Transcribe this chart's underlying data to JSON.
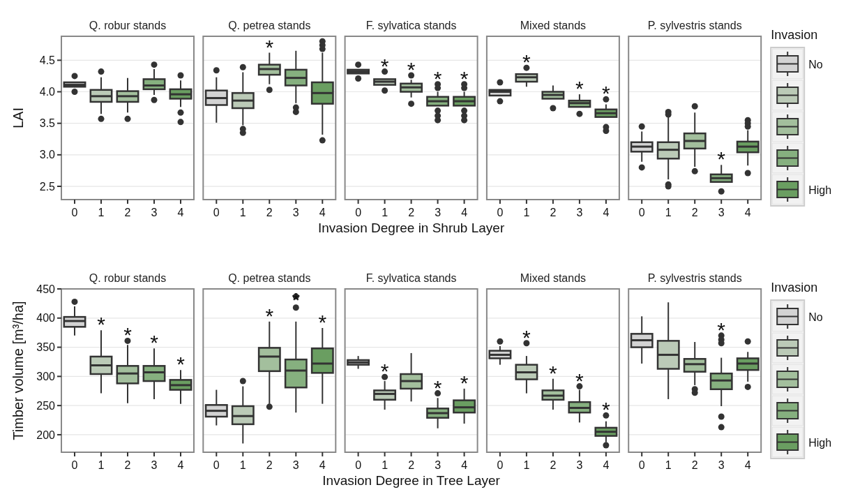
{
  "chart_data": [
    {
      "type": "box",
      "title": "Q. robur stands",
      "ylabel": "LAI",
      "categories": [
        "0",
        "1",
        "2",
        "3",
        "4"
      ],
      "ylim": [
        2.29,
        4.88
      ],
      "yticks": [
        2.5,
        {
          "value": 3,
          "label": "3.0"
        },
        3.5,
        {
          "value": 4,
          "label": "4.0"
        },
        4.5
      ],
      "grid": "y",
      "series": [
        {
          "color": "#d3d3d3",
          "boxes": [
            {
              "low": 4.07,
              "q1": 4.08,
              "median": 4.11,
              "q3": 4.15,
              "high": 4.16,
              "outliers": [
                4.25,
                4.0
              ]
            },
            null,
            null,
            null,
            null
          ]
        },
        {
          "color": "#bbcab7",
          "boxes": [
            null,
            {
              "low": 3.65,
              "q1": 3.84,
              "median": 3.93,
              "q3": 4.03,
              "high": 4.23,
              "outliers": [
                4.32,
                3.57
              ]
            },
            null,
            null,
            null
          ]
        },
        {
          "color": "#a3bf9d",
          "boxes": [
            null,
            null,
            {
              "low": 3.67,
              "q1": 3.84,
              "median": 3.93,
              "q3": 4.01,
              "high": 4.22,
              "outliers": [
                3.57
              ]
            },
            null,
            null
          ]
        },
        {
          "color": "#86b07f",
          "boxes": [
            null,
            null,
            null,
            {
              "low": 3.95,
              "q1": 4.04,
              "median": 4.1,
              "q3": 4.2,
              "high": 4.36,
              "outliers": [
                4.43,
                3.87
              ]
            },
            null
          ]
        },
        {
          "color": "#6a9e61",
          "boxes": [
            null,
            null,
            null,
            null,
            {
              "low": 3.76,
              "q1": 3.89,
              "median": 3.96,
              "q3": 4.04,
              "high": 4.18,
              "outliers": [
                4.26,
                3.67,
                3.52
              ]
            }
          ]
        }
      ]
    },
    {
      "type": "box",
      "title": "Q. petrea stands",
      "categories": [
        "0",
        "1",
        "2",
        "3",
        "4"
      ],
      "ylim": [
        2.29,
        4.88
      ],
      "yticks": [
        2.5,
        3,
        3.5,
        4,
        4.5
      ],
      "tick_labels": "x",
      "grid": "y",
      "annotations": [
        null,
        null,
        "*",
        null,
        null
      ],
      "series": [
        {
          "color": "#d3d3d3",
          "boxes": [
            {
              "low": 3.51,
              "q1": 3.79,
              "median": 3.9,
              "q3": 4.02,
              "high": 4.23,
              "outliers": [
                4.34
              ]
            },
            null,
            null,
            null,
            null
          ]
        },
        {
          "color": "#bbcab7",
          "boxes": [
            null,
            {
              "low": 3.47,
              "q1": 3.74,
              "median": 3.86,
              "q3": 3.98,
              "high": 4.31,
              "outliers": [
                4.39,
                3.41,
                3.35
              ]
            },
            null,
            null,
            null
          ]
        },
        {
          "color": "#a3bf9d",
          "boxes": [
            null,
            null,
            {
              "low": 4.12,
              "q1": 4.27,
              "median": 4.36,
              "q3": 4.43,
              "high": 4.62,
              "outliers": [
                4.03
              ]
            },
            null,
            null
          ]
        },
        {
          "color": "#86b07f",
          "boxes": [
            null,
            null,
            null,
            {
              "low": 3.82,
              "q1": 4.1,
              "median": 4.22,
              "q3": 4.35,
              "high": 4.65,
              "outliers": [
                3.75,
                3.68
              ]
            },
            null
          ]
        },
        {
          "color": "#6a9e61",
          "boxes": [
            null,
            null,
            null,
            null,
            {
              "low": 3.32,
              "q1": 3.81,
              "median": 3.98,
              "q3": 4.15,
              "high": 4.62,
              "outliers": [
                4.8,
                4.74,
                4.68,
                3.23
              ]
            }
          ]
        }
      ]
    },
    {
      "type": "box",
      "title": "F. sylvatica stands",
      "xlabel": "Invasion Degree in Shrub Layer",
      "categories": [
        "0",
        "1",
        "2",
        "3",
        "4"
      ],
      "ylim": [
        2.29,
        4.88
      ],
      "yticks": [
        2.5,
        3,
        3.5,
        4,
        4.5
      ],
      "tick_labels": "x",
      "grid": "y",
      "annotations": [
        null,
        "*",
        "*",
        "*",
        "*"
      ],
      "series": [
        {
          "color": "#d3d3d3",
          "boxes": [
            {
              "low": 4.29,
              "q1": 4.29,
              "median": 4.32,
              "q3": 4.35,
              "high": 4.35,
              "outliers": [
                4.43,
                4.21
              ]
            },
            null,
            null,
            null,
            null
          ]
        },
        {
          "color": "#bbcab7",
          "boxes": [
            null,
            {
              "low": 4.11,
              "q1": 4.11,
              "median": 4.16,
              "q3": 4.2,
              "high": 4.2,
              "outliers": [
                4.32,
                4.02
              ]
            },
            null,
            null,
            null
          ]
        },
        {
          "color": "#a3bf9d",
          "boxes": [
            null,
            null,
            {
              "low": 3.91,
              "q1": 4.0,
              "median": 4.07,
              "q3": 4.13,
              "high": 4.19,
              "outliers": [
                4.26,
                3.81
              ]
            },
            null,
            null
          ]
        },
        {
          "color": "#86b07f",
          "boxes": [
            null,
            null,
            null,
            {
              "low": 3.78,
              "q1": 3.78,
              "median": 3.85,
              "q3": 3.92,
              "high": 4.0,
              "outliers": [
                4.12,
                4.06,
                3.7,
                3.62,
                3.55
              ]
            },
            null
          ]
        },
        {
          "color": "#6a9e61",
          "boxes": [
            null,
            null,
            null,
            null,
            {
              "low": 3.78,
              "q1": 3.78,
              "median": 3.85,
              "q3": 3.92,
              "high": 4.0,
              "outliers": [
                4.12,
                4.06,
                3.7,
                3.62,
                3.55
              ]
            }
          ]
        }
      ]
    },
    {
      "type": "box",
      "title": "Mixed stands",
      "categories": [
        "0",
        "1",
        "2",
        "3",
        "4"
      ],
      "ylim": [
        2.29,
        4.88
      ],
      "yticks": [
        2.5,
        3,
        3.5,
        4,
        4.5
      ],
      "tick_labels": "x",
      "grid": "y",
      "annotations": [
        null,
        "*",
        null,
        "*",
        "*"
      ],
      "series": [
        {
          "color": "#d3d3d3",
          "boxes": [
            {
              "low": 3.94,
              "q1": 3.94,
              "median": 4.0,
              "q3": 4.03,
              "high": 4.03,
              "outliers": [
                4.15,
                3.85
              ]
            },
            null,
            null,
            null,
            null
          ]
        },
        {
          "color": "#bbcab7",
          "boxes": [
            null,
            {
              "low": 4.08,
              "q1": 4.16,
              "median": 4.23,
              "q3": 4.28,
              "high": 4.28,
              "outliers": [
                4.38
              ]
            },
            null,
            null,
            null
          ]
        },
        {
          "color": "#a3bf9d",
          "boxes": [
            null,
            null,
            {
              "low": 3.89,
              "q1": 3.89,
              "median": 3.95,
              "q3": 4.0,
              "high": 4.1,
              "outliers": [
                3.74
              ]
            },
            null,
            null
          ]
        },
        {
          "color": "#86b07f",
          "boxes": [
            null,
            null,
            null,
            {
              "low": 3.76,
              "q1": 3.76,
              "median": 3.82,
              "q3": 3.86,
              "high": 3.96,
              "outliers": [
                3.65
              ]
            },
            null
          ]
        },
        {
          "color": "#6a9e61",
          "boxes": [
            null,
            null,
            null,
            null,
            {
              "low": 3.6,
              "q1": 3.6,
              "median": 3.66,
              "q3": 3.72,
              "high": 3.8,
              "outliers": [
                3.88,
                3.44,
                3.38
              ]
            }
          ]
        }
      ]
    },
    {
      "type": "box",
      "title": "P. sylvestris stands",
      "categories": [
        "0",
        "1",
        "2",
        "3",
        "4"
      ],
      "ylim": [
        2.29,
        4.88
      ],
      "yticks": [
        2.5,
        3,
        3.5,
        4,
        4.5
      ],
      "tick_labels": "x",
      "grid": "y",
      "legend": "right",
      "legend_title": "Invasion",
      "annotations": [
        null,
        null,
        null,
        "*",
        null
      ],
      "series": [
        {
          "name": "No",
          "color": "#d3d3d3",
          "boxes": [
            {
              "low": 2.89,
              "q1": 3.05,
              "median": 3.13,
              "q3": 3.2,
              "high": 3.37,
              "outliers": [
                3.45,
                2.8
              ]
            },
            null,
            null,
            null,
            null
          ]
        },
        {
          "color": "#bbcab7",
          "boxes": [
            null,
            {
              "low": 2.61,
              "q1": 2.94,
              "median": 3.08,
              "q3": 3.2,
              "high": 3.6,
              "outliers": [
                3.68,
                3.64,
                2.53,
                2.5
              ]
            },
            null,
            null,
            null
          ]
        },
        {
          "color": "#a3bf9d",
          "boxes": [
            null,
            null,
            {
              "low": 2.81,
              "q1": 3.1,
              "median": 3.22,
              "q3": 3.34,
              "high": 3.67,
              "outliers": [
                3.77,
                2.74
              ]
            },
            null,
            null
          ]
        },
        {
          "color": "#86b07f",
          "boxes": [
            null,
            null,
            null,
            {
              "low": 2.57,
              "q1": 2.57,
              "median": 2.63,
              "q3": 2.69,
              "high": 2.84,
              "outliers": [
                2.42
              ]
            },
            null
          ]
        },
        {
          "name": "High",
          "color": "#6a9e61",
          "boxes": [
            null,
            null,
            null,
            null,
            {
              "low": 2.83,
              "q1": 3.04,
              "median": 3.13,
              "q3": 3.21,
              "high": 3.39,
              "outliers": [
                3.55,
                3.5,
                3.45,
                2.71
              ]
            }
          ]
        }
      ]
    },
    {
      "type": "box",
      "title": "Q. robur stands",
      "ylabel": "Timber volume [m³/ha]",
      "categories": [
        "0",
        "1",
        "2",
        "3",
        "4"
      ],
      "ylim": [
        170,
        450
      ],
      "yticks": [
        200,
        250,
        300,
        350,
        400,
        450
      ],
      "grid": "y",
      "annotations": [
        null,
        "*",
        "*",
        "*",
        "*"
      ],
      "series": [
        {
          "color": "#d3d3d3",
          "boxes": [
            {
              "low": 370,
              "q1": 385,
              "median": 395,
              "q3": 402,
              "high": 420,
              "outliers": [
                428
              ]
            },
            null,
            null,
            null,
            null
          ]
        },
        {
          "color": "#bbcab7",
          "boxes": [
            null,
            {
              "low": 271,
              "q1": 304,
              "median": 319,
              "q3": 334,
              "high": 379
            },
            null,
            null,
            null
          ]
        },
        {
          "color": "#a3bf9d",
          "boxes": [
            null,
            null,
            {
              "low": 254,
              "q1": 288,
              "median": 305,
              "q3": 318,
              "high": 354,
              "outliers": [
                361
              ]
            },
            null,
            null
          ]
        },
        {
          "color": "#86b07f",
          "boxes": [
            null,
            null,
            null,
            {
              "low": 261,
              "q1": 292,
              "median": 307,
              "q3": 318,
              "high": 348
            },
            null
          ]
        },
        {
          "color": "#6a9e61",
          "boxes": [
            null,
            null,
            null,
            null,
            {
              "low": 253,
              "q1": 277,
              "median": 285,
              "q3": 294,
              "high": 311
            }
          ]
        }
      ]
    },
    {
      "type": "box",
      "title": "Q. petrea stands",
      "categories": [
        "0",
        "1",
        "2",
        "3",
        "4"
      ],
      "ylim": [
        170,
        450
      ],
      "yticks": [
        200,
        250,
        300,
        350,
        400,
        450
      ],
      "tick_labels": "x",
      "grid": "y",
      "annotations": [
        null,
        null,
        "*",
        "*",
        "*"
      ],
      "series": [
        {
          "color": "#d3d3d3",
          "boxes": [
            {
              "low": 216,
              "q1": 231,
              "median": 241,
              "q3": 251,
              "high": 277
            },
            null,
            null,
            null,
            null
          ]
        },
        {
          "color": "#bbcab7",
          "boxes": [
            null,
            {
              "low": 185,
              "q1": 218,
              "median": 232,
              "q3": 249,
              "high": 283,
              "outliers": [
                292
              ]
            },
            null,
            null,
            null
          ]
        },
        {
          "color": "#a3bf9d",
          "boxes": [
            null,
            null,
            {
              "low": 253,
              "q1": 309,
              "median": 334,
              "q3": 349,
              "high": 394,
              "outliers": [
                248
              ]
            },
            null,
            null
          ]
        },
        {
          "color": "#86b07f",
          "boxes": [
            null,
            null,
            null,
            {
              "low": 238,
              "q1": 281,
              "median": 310,
              "q3": 329,
              "high": 394,
              "outliers": [
                437,
                418
              ]
            },
            null
          ]
        },
        {
          "color": "#6a9e61",
          "boxes": [
            null,
            null,
            null,
            null,
            {
              "low": 253,
              "q1": 306,
              "median": 322,
              "q3": 348,
              "high": 383
            }
          ]
        }
      ]
    },
    {
      "type": "box",
      "title": "F. sylvatica stands",
      "xlabel": "Invasion Degree in Tree Layer",
      "categories": [
        "0",
        "1",
        "2",
        "3",
        "4"
      ],
      "ylim": [
        170,
        450
      ],
      "yticks": [
        200,
        250,
        300,
        350,
        400,
        450
      ],
      "tick_labels": "x",
      "grid": "y",
      "annotations": [
        null,
        "*",
        null,
        "*",
        "*"
      ],
      "series": [
        {
          "color": "#d3d3d3",
          "boxes": [
            {
              "low": 313,
              "q1": 320,
              "median": 324,
              "q3": 328,
              "high": 335
            },
            null,
            null,
            null,
            null
          ]
        },
        {
          "color": "#bbcab7",
          "boxes": [
            null,
            {
              "low": 243,
              "q1": 260,
              "median": 270,
              "q3": 276,
              "high": 292,
              "outliers": [
                299
              ]
            },
            null,
            null,
            null
          ]
        },
        {
          "color": "#a3bf9d",
          "boxes": [
            null,
            null,
            {
              "low": 257,
              "q1": 279,
              "median": 292,
              "q3": 304,
              "high": 340
            },
            null,
            null
          ]
        },
        {
          "color": "#86b07f",
          "boxes": [
            null,
            null,
            null,
            {
              "low": 211,
              "q1": 229,
              "median": 237,
              "q3": 245,
              "high": 263,
              "outliers": [
                271
              ]
            },
            null
          ]
        },
        {
          "color": "#6a9e61",
          "boxes": [
            null,
            null,
            null,
            null,
            {
              "low": 219,
              "q1": 238,
              "median": 247,
              "q3": 259,
              "high": 279
            }
          ]
        }
      ]
    },
    {
      "type": "box",
      "title": "Mixed stands",
      "categories": [
        "0",
        "1",
        "2",
        "3",
        "4"
      ],
      "ylim": [
        170,
        450
      ],
      "yticks": [
        200,
        250,
        300,
        350,
        400,
        450
      ],
      "tick_labels": "x",
      "grid": "y",
      "annotations": [
        null,
        "*",
        "*",
        "*",
        "*"
      ],
      "series": [
        {
          "color": "#d3d3d3",
          "boxes": [
            {
              "low": 320,
              "q1": 331,
              "median": 337,
              "q3": 344,
              "high": 352,
              "outliers": [
                360
              ]
            },
            null,
            null,
            null,
            null
          ]
        },
        {
          "color": "#bbcab7",
          "boxes": [
            null,
            {
              "low": 271,
              "q1": 295,
              "median": 307,
              "q3": 320,
              "high": 335,
              "outliers": [
                357
              ]
            },
            null,
            null,
            null
          ]
        },
        {
          "color": "#a3bf9d",
          "boxes": [
            null,
            null,
            {
              "low": 243,
              "q1": 260,
              "median": 267,
              "q3": 276,
              "high": 296
            },
            null,
            null
          ]
        },
        {
          "color": "#86b07f",
          "boxes": [
            null,
            null,
            null,
            {
              "low": 221,
              "q1": 238,
              "median": 246,
              "q3": 256,
              "high": 277,
              "outliers": [
                283
              ]
            },
            null
          ]
        },
        {
          "color": "#6a9e61",
          "boxes": [
            null,
            null,
            null,
            null,
            {
              "low": 187,
              "q1": 198,
              "median": 205,
              "q3": 212,
              "high": 223,
              "outliers": [
                233,
                182
              ]
            }
          ]
        }
      ]
    },
    {
      "type": "box",
      "title": "P. sylvestris stands",
      "categories": [
        "0",
        "1",
        "2",
        "3",
        "4"
      ],
      "ylim": [
        170,
        450
      ],
      "yticks": [
        200,
        250,
        300,
        350,
        400,
        450
      ],
      "tick_labels": "x",
      "grid": "y",
      "legend": "right",
      "legend_title": "Invasion",
      "annotations": [
        null,
        null,
        null,
        "*",
        null
      ],
      "series": [
        {
          "name": "No",
          "color": "#d3d3d3",
          "boxes": [
            {
              "low": 322,
              "q1": 350,
              "median": 362,
              "q3": 373,
              "high": 403
            },
            null,
            null,
            null,
            null
          ]
        },
        {
          "color": "#bbcab7",
          "boxes": [
            null,
            {
              "low": 261,
              "q1": 313,
              "median": 337,
              "q3": 361,
              "high": 427
            },
            null,
            null,
            null
          ]
        },
        {
          "color": "#a3bf9d",
          "boxes": [
            null,
            null,
            {
              "low": 285,
              "q1": 308,
              "median": 321,
              "q3": 330,
              "high": 359,
              "outliers": [
                278,
                272
              ]
            },
            null,
            null
          ]
        },
        {
          "color": "#86b07f",
          "boxes": [
            null,
            null,
            null,
            {
              "low": 249,
              "q1": 278,
              "median": 293,
              "q3": 305,
              "high": 332,
              "outliers": [
                370,
                363,
                357,
                231,
                213
              ]
            },
            null
          ]
        },
        {
          "name": "High",
          "color": "#6a9e61",
          "boxes": [
            null,
            null,
            null,
            null,
            {
              "low": 291,
              "q1": 311,
              "median": 322,
              "q3": 331,
              "high": 342,
              "outliers": [
                360,
                282
              ]
            }
          ]
        }
      ]
    }
  ]
}
